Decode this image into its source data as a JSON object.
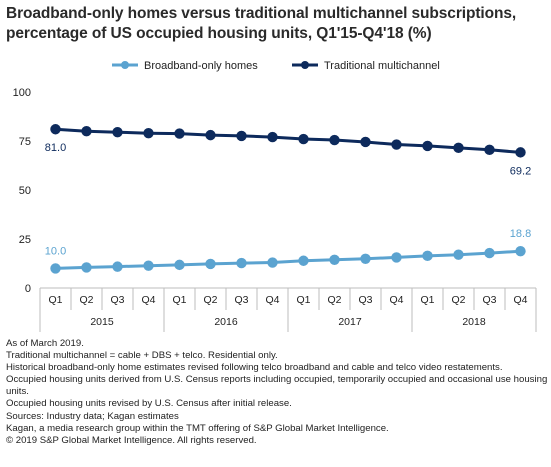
{
  "title": {
    "line1": "Broadband-only homes versus traditional multichannel subscriptions,",
    "line2": "percentage of US occupied housing units, Q1'15-Q4'18 (%)"
  },
  "chart_data": {
    "type": "line",
    "x": [
      "Q1",
      "Q2",
      "Q3",
      "Q4",
      "Q1",
      "Q2",
      "Q3",
      "Q4",
      "Q1",
      "Q2",
      "Q3",
      "Q4",
      "Q1",
      "Q2",
      "Q3",
      "Q4"
    ],
    "year_groups": [
      {
        "label": "2015"
      },
      {
        "label": "2016"
      },
      {
        "label": "2017"
      },
      {
        "label": "2018"
      }
    ],
    "ylim": [
      0,
      100
    ],
    "yticks": [
      0,
      25,
      50,
      75,
      100
    ],
    "grid": false,
    "legend_position": "top",
    "series": [
      {
        "name": "Broadband-only homes",
        "color": "#5ba3d0",
        "values": [
          10.0,
          10.5,
          10.9,
          11.4,
          11.8,
          12.3,
          12.7,
          13.0,
          13.9,
          14.4,
          14.9,
          15.6,
          16.4,
          17.0,
          17.8,
          18.8
        ],
        "labels": {
          "first": "10.0",
          "last": "18.8"
        }
      },
      {
        "name": "Traditional multichannel",
        "color": "#0d2a5c",
        "values": [
          81.0,
          80.0,
          79.5,
          79.0,
          78.8,
          78.0,
          77.6,
          77.0,
          76.0,
          75.5,
          74.5,
          73.2,
          72.5,
          71.5,
          70.5,
          69.2
        ],
        "labels": {
          "first": "81.0",
          "last": "69.2"
        }
      }
    ]
  },
  "notes": [
    "As of March 2019.",
    "Traditional multichannel = cable + DBS + telco. Residential only.",
    "Historical broadband-only home estimates revised following telco broadband and cable and telco video restatements.",
    "Occupied housing units derived from U.S. Census reports including occupied, temporarily occupied and occasional use housing units.",
    "Occupied housing units revised by U.S. Census after initial release.",
    "Sources: Industry data; Kagan estimates",
    "Kagan, a media research group within the TMT offering of S&P Global Market Intelligence.",
    "© 2019 S&P Global Market Intelligence. All rights reserved."
  ]
}
